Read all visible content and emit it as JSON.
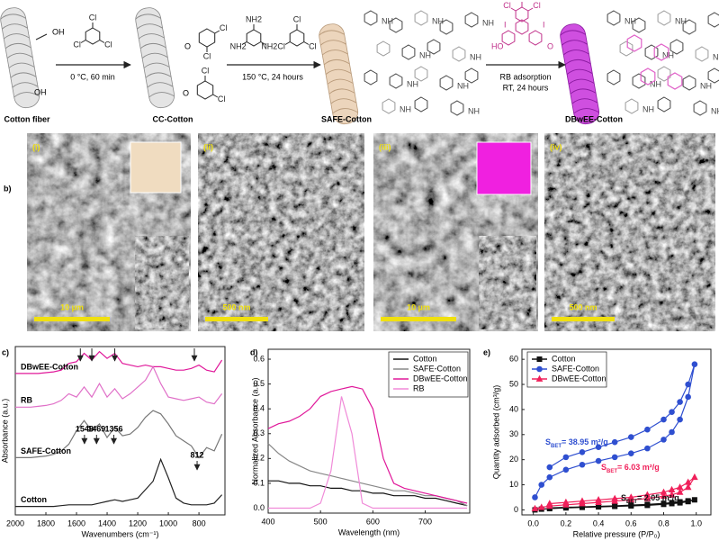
{
  "panel_labels": [
    "a)",
    "b)",
    "c)",
    "d)",
    "e)"
  ],
  "scheme": {
    "steps": [
      "Cotton fiber",
      "CC-Cotton",
      "SAFE-Cotton",
      "DBwEE-Cotton"
    ],
    "conditions": [
      "0 °C, 60 min",
      "150 °C, 24 hours",
      "RB adsorption",
      "RT, 24 hours"
    ],
    "atoms": {
      "oh": "OH",
      "cl": "Cl",
      "nh2": "NH2",
      "nh": "NH",
      "o": "O",
      "i": "I",
      "ho": "HO"
    }
  },
  "micrographs": [
    {
      "label": "(i)",
      "scale_bar": "10 µm"
    },
    {
      "label": "(ii)",
      "scale_bar": "500 nm"
    },
    {
      "label": "(iii)",
      "scale_bar": "10 µm"
    },
    {
      "label": "(iv)",
      "scale_bar": "500 nm"
    }
  ],
  "chart_data": [
    {
      "type": "line",
      "x_label": "Wavenumbers (cm⁻¹)",
      "y_label": "Absorbance (a.u.)",
      "x": [
        2000,
        1950,
        1900,
        1850,
        1800,
        1750,
        1700,
        1650,
        1600,
        1550,
        1500,
        1450,
        1400,
        1350,
        1300,
        1250,
        1200,
        1150,
        1100,
        1050,
        1000,
        950,
        900,
        850,
        800,
        750,
        700,
        650
      ],
      "xlim": [
        2000,
        630
      ],
      "xticks": [
        2000,
        1800,
        1600,
        1400,
        1200,
        1000,
        800
      ],
      "ylim": [
        0,
        10
      ],
      "series": [
        {
          "name": "DBwEE-Cotton",
          "color": "#e0189a",
          "values": [
            8.4,
            8.4,
            8.4,
            8.4,
            8.45,
            8.5,
            8.6,
            9.0,
            9.1,
            9.6,
            9.2,
            9.7,
            9.3,
            9.6,
            9.0,
            8.9,
            8.8,
            8.9,
            8.8,
            8.8,
            8.7,
            8.6,
            8.6,
            8.7,
            8.9,
            8.6,
            8.5,
            9.2
          ]
        },
        {
          "name": "RB",
          "color": "#e070c8",
          "values": [
            6.4,
            6.4,
            6.4,
            6.45,
            6.5,
            6.6,
            6.8,
            7.2,
            7.0,
            7.6,
            7.0,
            7.8,
            7.0,
            7.5,
            6.9,
            7.2,
            7.6,
            8.0,
            8.8,
            7.8,
            7.0,
            6.9,
            6.8,
            6.9,
            7.0,
            6.7,
            6.6,
            7.2
          ]
        },
        {
          "name": "SAFE-Cotton",
          "color": "#777777",
          "values": [
            3.4,
            3.4,
            3.4,
            3.45,
            3.5,
            3.6,
            3.8,
            4.2,
            5.0,
            5.6,
            5.0,
            5.4,
            4.6,
            5.2,
            4.7,
            4.8,
            5.2,
            5.8,
            6.2,
            6.0,
            5.4,
            4.7,
            4.4,
            4.1,
            3.4,
            4.0,
            3.8,
            4.8
          ]
        },
        {
          "name": "Cotton",
          "color": "#222222",
          "values": [
            0.5,
            0.5,
            0.5,
            0.5,
            0.5,
            0.5,
            0.55,
            0.6,
            0.6,
            0.6,
            0.6,
            0.7,
            0.8,
            0.9,
            0.8,
            0.9,
            1.0,
            1.5,
            2.0,
            3.3,
            2.2,
            1.0,
            0.7,
            0.6,
            0.6,
            0.6,
            0.7,
            1.2
          ]
        }
      ],
      "peak_labels": [
        1548,
        1469,
        1356,
        812
      ],
      "peak_arrows": [
        1575,
        1500,
        1350,
        830
      ]
    },
    {
      "type": "line",
      "x_label": "Wavelength (nm)",
      "y_label": "Normalized Absorbance (a.u.)",
      "x": [
        400,
        420,
        440,
        460,
        480,
        500,
        520,
        540,
        560,
        580,
        600,
        620,
        640,
        660,
        680,
        700,
        720,
        740,
        760,
        780
      ],
      "xlim": [
        400,
        785
      ],
      "xticks": [
        400,
        500,
        600,
        700
      ],
      "ylim": [
        -0.02,
        0.64
      ],
      "yticks": [
        {
          "value": 0,
          "label": "0.0"
        },
        0.1,
        0.2,
        0.3,
        0.4,
        0.5,
        0.6
      ],
      "legend": "upper right",
      "series": [
        {
          "name": "Cotton",
          "color": "#111111",
          "values": [
            0.11,
            0.11,
            0.1,
            0.1,
            0.09,
            0.09,
            0.08,
            0.08,
            0.07,
            0.07,
            0.06,
            0.06,
            0.05,
            0.05,
            0.05,
            0.04,
            0.04,
            0.03,
            0.02,
            0.01
          ]
        },
        {
          "name": "SAFE-Cotton",
          "color": "#888888",
          "values": [
            0.26,
            0.22,
            0.19,
            0.17,
            0.15,
            0.14,
            0.13,
            0.12,
            0.11,
            0.1,
            0.09,
            0.08,
            0.07,
            0.07,
            0.06,
            0.05,
            0.05,
            0.04,
            0.03,
            0.01
          ]
        },
        {
          "name": "DBwEE-Cotton",
          "color": "#e0189a",
          "values": [
            0.32,
            0.34,
            0.35,
            0.37,
            0.4,
            0.45,
            0.47,
            0.48,
            0.49,
            0.48,
            0.4,
            0.2,
            0.1,
            0.08,
            0.07,
            0.06,
            0.05,
            0.04,
            0.03,
            0.02
          ]
        },
        {
          "name": "RB",
          "color": "#f08ad8",
          "values": [
            0,
            0,
            0,
            0,
            0,
            0.02,
            0.15,
            0.45,
            0.3,
            0.02,
            0,
            0,
            0,
            0,
            0,
            0,
            0,
            0,
            0,
            0
          ]
        }
      ]
    },
    {
      "type": "line",
      "x_label": "Relative pressure (P/P₀)",
      "y_label": "Quantity adsorbed (cm³/g)",
      "x": [
        0.01,
        0.05,
        0.1,
        0.2,
        0.3,
        0.4,
        0.5,
        0.6,
        0.7,
        0.8,
        0.85,
        0.9,
        0.95,
        0.99,
        0.95,
        0.9,
        0.85,
        0.8,
        0.7,
        0.6,
        0.5,
        0.4,
        0.3,
        0.2,
        0.1
      ],
      "xlim": [
        -0.07,
        1.09
      ],
      "xticks": [
        {
          "value": 0,
          "label": "0.0"
        },
        0.2,
        0.4,
        0.6,
        0.8,
        {
          "value": 1,
          "label": "1.0"
        }
      ],
      "ylim": [
        -2,
        64
      ],
      "yticks": [
        0,
        10,
        20,
        30,
        40,
        50,
        60
      ],
      "legend": "upper left",
      "series": [
        {
          "name": "Cotton",
          "color": "#111111",
          "marker": "square",
          "values": [
            0,
            0.3,
            0.5,
            0.8,
            1,
            1.2,
            1.4,
            1.6,
            1.8,
            2.2,
            2.5,
            2.8,
            3.3,
            4,
            3.6,
            3.2,
            2.9,
            2.6,
            2.2,
            1.9,
            1.6,
            1.4,
            1.2,
            1,
            0.8
          ]
        },
        {
          "name": "SAFE-Cotton",
          "color": "#2f4fd0",
          "marker": "circle",
          "values": [
            5,
            10,
            13,
            16,
            18,
            19.5,
            21,
            22.5,
            24.5,
            28,
            31,
            36,
            45,
            58,
            50,
            43,
            39,
            36,
            32,
            29,
            27,
            25,
            23,
            21,
            17
          ]
        },
        {
          "name": "DBwEE-Cotton",
          "color": "#f0205a",
          "marker": "triangle",
          "values": [
            0.5,
            1,
            1.5,
            2,
            2.5,
            3,
            3.5,
            4,
            4.5,
            5.5,
            6,
            7,
            9,
            13,
            11,
            9,
            8,
            7,
            6,
            5,
            4.5,
            4,
            3.5,
            3,
            2.5
          ]
        }
      ],
      "annotations": [
        {
          "symbol": "S",
          "subscript": "BET",
          "text": "= 38.95 m²/g",
          "color": "#2f4fd0"
        },
        {
          "symbol": "S",
          "subscript": "BET",
          "text": "= 6.03 m²/g",
          "color": "#f0205a"
        },
        {
          "symbol": "S",
          "subscript": "BET",
          "text": "= 2.05 m²/g",
          "color": "#111111"
        }
      ]
    }
  ]
}
